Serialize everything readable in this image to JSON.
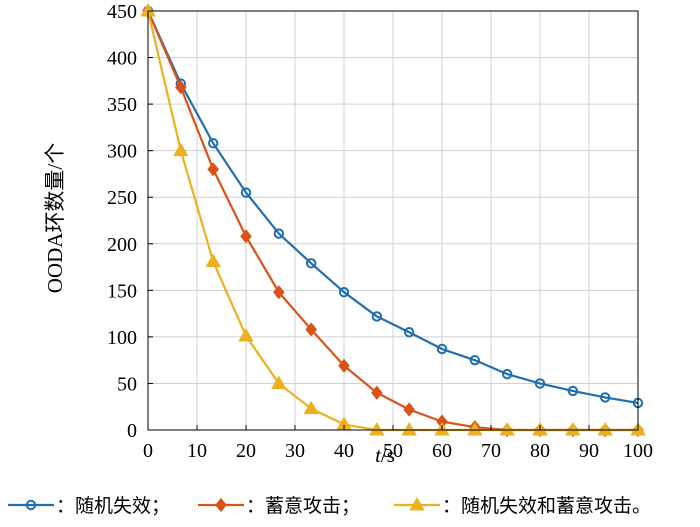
{
  "chart_data": {
    "type": "line",
    "xlabel": "t/s",
    "xlabel_var": "t",
    "xlabel_unit": "/s",
    "ylabel": "OODA环数量/个",
    "xlim": [
      0,
      100
    ],
    "ylim": [
      0,
      450
    ],
    "xticks": [
      0,
      10,
      20,
      30,
      40,
      50,
      60,
      70,
      80,
      90,
      100
    ],
    "yticks": [
      0,
      50,
      100,
      150,
      200,
      250,
      300,
      350,
      400,
      450
    ],
    "grid": true,
    "legend_position": "bottom",
    "series": [
      {
        "name": "：随机失效；",
        "color": "#1f6fb0",
        "marker": "circle",
        "x": [
          0,
          6.7,
          13.3,
          20,
          26.7,
          33.3,
          40,
          46.7,
          53.3,
          60,
          66.7,
          73.3,
          80,
          86.7,
          93.3,
          100
        ],
        "y": [
          450,
          372,
          308,
          255,
          211,
          179,
          148,
          122,
          105,
          87,
          75,
          60,
          50,
          42,
          35,
          29
        ]
      },
      {
        "name": "：蓄意攻击；",
        "color": "#d95319",
        "marker": "diamond",
        "x": [
          0,
          6.7,
          13.3,
          20,
          26.7,
          33.3,
          40,
          46.7,
          53.3,
          60,
          66.7,
          73.3,
          80,
          86.7,
          93.3,
          100
        ],
        "y": [
          450,
          368,
          280,
          208,
          148,
          108,
          69,
          40,
          22,
          9,
          3,
          0,
          0,
          0,
          0,
          0
        ]
      },
      {
        "name": "：随机失效和蓄意攻击。",
        "color": "#edb120",
        "marker": "triangle",
        "x": [
          0,
          6.7,
          13.3,
          20,
          26.7,
          33.3,
          40,
          46.7,
          53.3,
          60,
          66.7,
          73.3,
          80,
          86.7,
          93.3,
          100
        ],
        "y": [
          450,
          300,
          181,
          101,
          50,
          23,
          6,
          0,
          0,
          0,
          0,
          0,
          0,
          0,
          0,
          0
        ]
      }
    ]
  }
}
